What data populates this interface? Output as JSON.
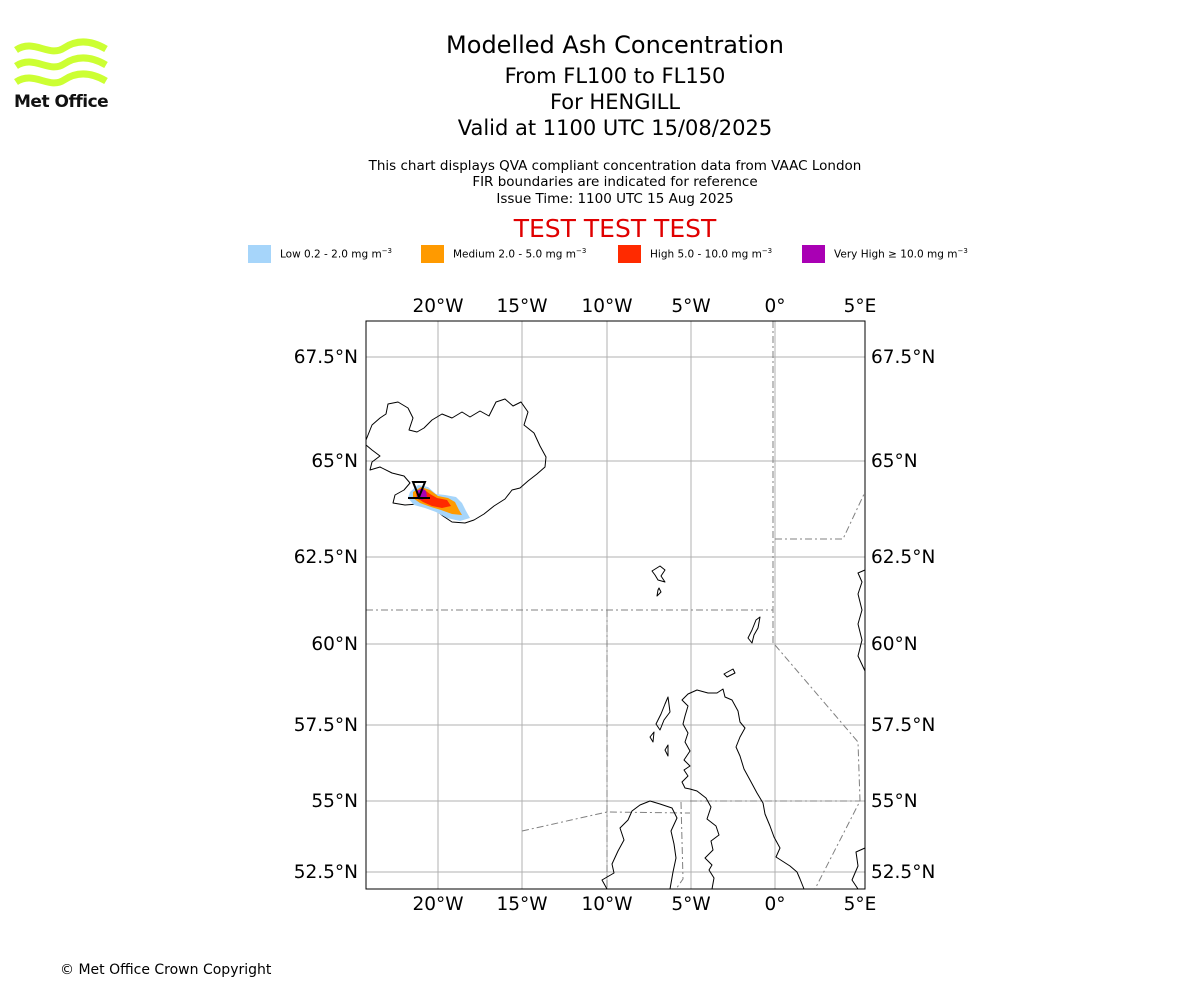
{
  "header": {
    "logo_text": "Met Office",
    "title": "Modelled Ash Concentration",
    "subtitle_levels": "From FL100 to FL150",
    "subtitle_volcano": "For HENGILL",
    "subtitle_valid": "Valid at 1100 UTC 15/08/2025",
    "note_line1": "This chart displays QVA compliant concentration data from VAAC London",
    "note_line2": "FIR boundaries are indicated for reference",
    "note_line3": "Issue Time: 1100 UTC 15 Aug 2025",
    "test_banner": "TEST TEST TEST"
  },
  "legend": [
    {
      "label": "Low 0.2 - 2.0 mg m",
      "color": "#a6d5fa"
    },
    {
      "label": "Medium 2.0 - 5.0 mg m",
      "color": "#ff9a00"
    },
    {
      "label": "High 5.0 - 10.0 mg m",
      "color": "#ff2a00"
    },
    {
      "label": "Very High ≥ 10.0 mg m",
      "color": "#a900b4"
    }
  ],
  "legend_unit_exponent": "−3",
  "map": {
    "lon_ticks": [
      "20°W",
      "15°W",
      "10°W",
      "5°W",
      "0°",
      "5°E"
    ],
    "lat_ticks": [
      "67.5°N",
      "65°N",
      "62.5°N",
      "60°N",
      "57.5°N",
      "55°N",
      "52.5°N"
    ],
    "volcano_marker": "volcano-triangle",
    "colors": {
      "grid": "#b0b0b0",
      "coast": "#000000",
      "fir": "#808080"
    }
  },
  "footer": {
    "copyright": "© Met Office Crown Copyright"
  }
}
